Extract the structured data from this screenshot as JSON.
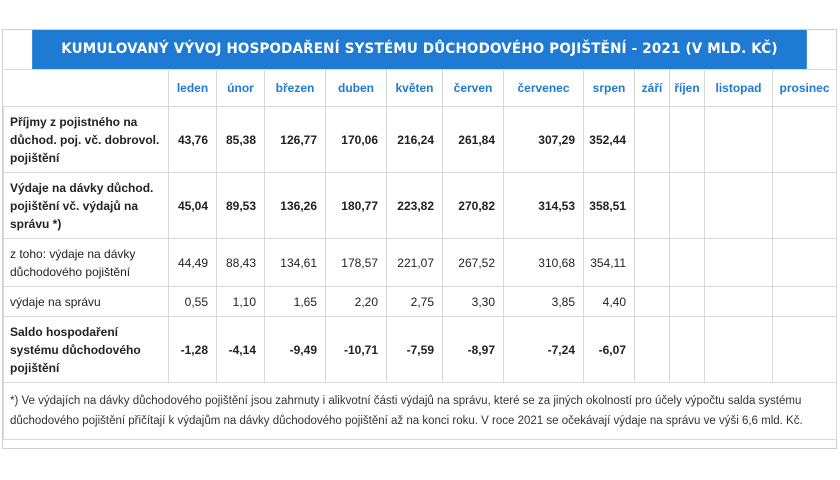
{
  "title": "KUMULOVANÝ VÝVOJ HOSPODAŘENÍ SYSTÉMU DŮCHODOVÉHO POJIŠTĚNÍ - 2021 (V MLD. KČ)",
  "months": [
    "leden",
    "únor",
    "březen",
    "duben",
    "květen",
    "červen",
    "červenec",
    "srpen",
    "září",
    "říjen",
    "listopad",
    "prosinec"
  ],
  "rows": [
    {
      "label": "Příjmy z pojistného na důchod. poj. vč. dobrovol. pojištění",
      "bold": true,
      "values": [
        "43,76",
        "85,38",
        "126,77",
        "170,06",
        "216,24",
        "261,84",
        "307,29",
        "352,44",
        "",
        "",
        "",
        ""
      ]
    },
    {
      "label": "Výdaje na dávky důchod. pojištění vč. výdajů na správu *)",
      "bold": true,
      "values": [
        "45,04",
        "89,53",
        "136,26",
        "180,77",
        "223,82",
        "270,82",
        "314,53",
        "358,51",
        "",
        "",
        "",
        ""
      ]
    },
    {
      "label": "z toho: výdaje na dávky důchodového pojištění",
      "bold": false,
      "values": [
        "44,49",
        "88,43",
        "134,61",
        "178,57",
        "221,07",
        "267,52",
        "310,68",
        "354,11",
        "",
        "",
        "",
        ""
      ]
    },
    {
      "label": "výdaje na správu",
      "bold": false,
      "values": [
        "0,55",
        "1,10",
        "1,65",
        "2,20",
        "2,75",
        "3,30",
        "3,85",
        "4,40",
        "",
        "",
        "",
        ""
      ]
    },
    {
      "label": "Saldo hospodaření systému důchodového pojištění",
      "bold": true,
      "values": [
        "-1,28",
        "-4,14",
        "-9,49",
        "-10,71",
        "-7,59",
        "-8,97",
        "-7,24",
        "-6,07",
        "",
        "",
        "",
        ""
      ]
    }
  ],
  "footnote": "*) Ve výdajích na dávky důchodového pojištění jsou zahrnuty i alikvotní části výdajů na správu, které se za jiných okolností pro účely výpočtu salda systému důchodového pojištění přičítají k výdajům na dávky důchodového pojištění až na konci roku. V roce 2021 se očekávají výdaje na správu ve výši 6,6 mld. Kč."
}
